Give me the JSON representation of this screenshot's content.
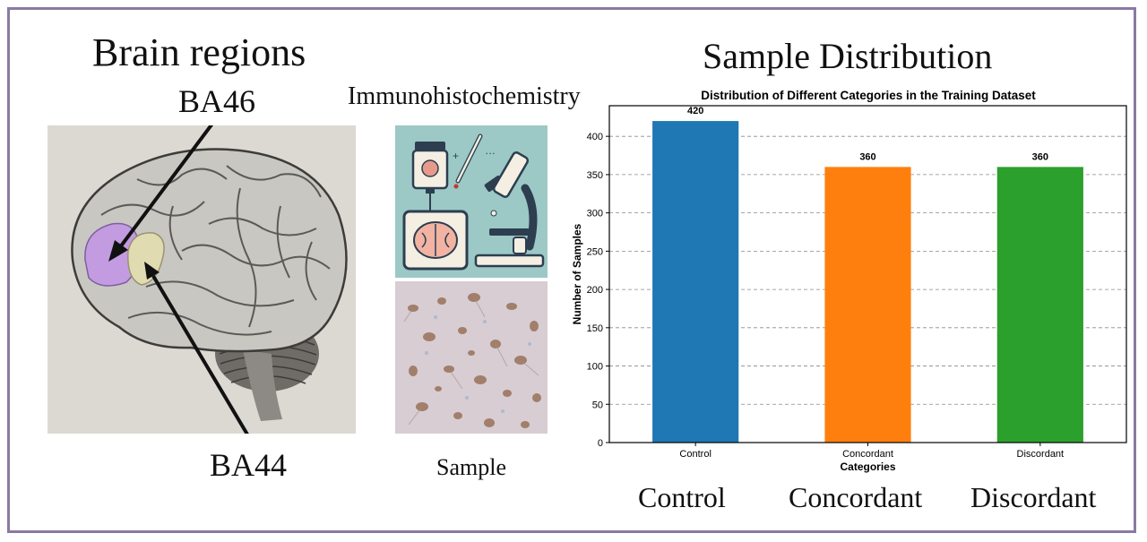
{
  "left": {
    "title": "Brain regions",
    "ba46": "BA46",
    "ba44": "BA44"
  },
  "middle": {
    "title": "Immunohistochemistry",
    "sample": "Sample"
  },
  "right": {
    "title": "Sample Distribution",
    "category_labels": [
      "Control",
      "Concordant",
      "Discordant"
    ]
  },
  "colors": {
    "frame": "#8a7aa3",
    "ba46_region": "#c39be0",
    "ba44_region": "#e0dbb0",
    "control": "#1f77b4",
    "concordant": "#ff7f0e",
    "discordant": "#2ca02c"
  },
  "chart_data": {
    "type": "bar",
    "title": "Distribution of Different Categories in the Training Dataset",
    "xlabel": "Categories",
    "ylabel": "Number of Samples",
    "categories": [
      "Control",
      "Concordant",
      "Discordant"
    ],
    "values": [
      420,
      360,
      360
    ],
    "data_labels": [
      "420",
      "360",
      "360"
    ],
    "ylim": [
      0,
      440
    ],
    "yticks": [
      0,
      50,
      100,
      150,
      200,
      250,
      300,
      350,
      400
    ],
    "grid": "y-dashed"
  }
}
